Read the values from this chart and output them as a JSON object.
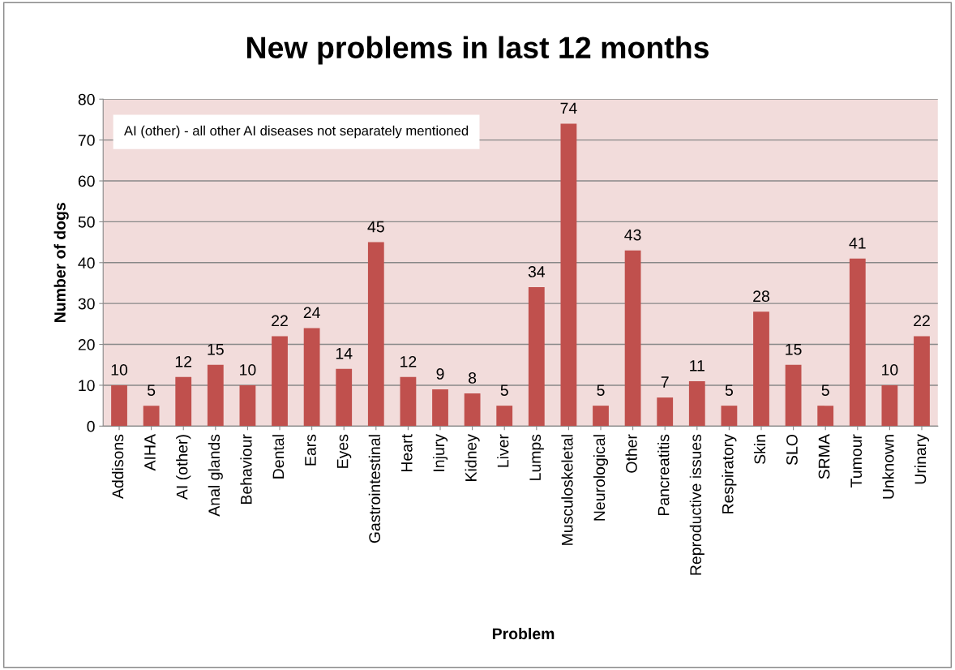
{
  "chart_data": {
    "type": "bar",
    "title": "New problems in last 12 months",
    "xlabel": "Problem",
    "ylabel": "Number of dogs",
    "categories": [
      "Addisons",
      "AIHA",
      "AI (other)",
      "Anal glands",
      "Behaviour",
      "Dental",
      "Ears",
      "Eyes",
      "Gastrointestinal",
      "Heart",
      "Injury",
      "Kidney",
      "Liver",
      "Lumps",
      "Musculoskeletal",
      "Neurological",
      "Other",
      "Pancreatitis",
      "Reproductive issues",
      "Respiratory",
      "Skin",
      "SLO",
      "SRMA",
      "Tumour",
      "Unknown",
      "Urinary"
    ],
    "values": [
      10,
      5,
      12,
      15,
      10,
      22,
      24,
      14,
      45,
      12,
      9,
      8,
      5,
      34,
      74,
      5,
      43,
      7,
      11,
      5,
      28,
      15,
      5,
      41,
      10,
      22
    ],
    "color": "#c0504d",
    "ylim": [
      0,
      80
    ],
    "yticks": [
      0,
      10,
      20,
      30,
      40,
      50,
      60,
      70,
      80
    ],
    "grid": "y",
    "data_labels": true,
    "legend": false,
    "annotations": [
      "AI (other) - all other AI diseases not separately mentioned"
    ]
  }
}
